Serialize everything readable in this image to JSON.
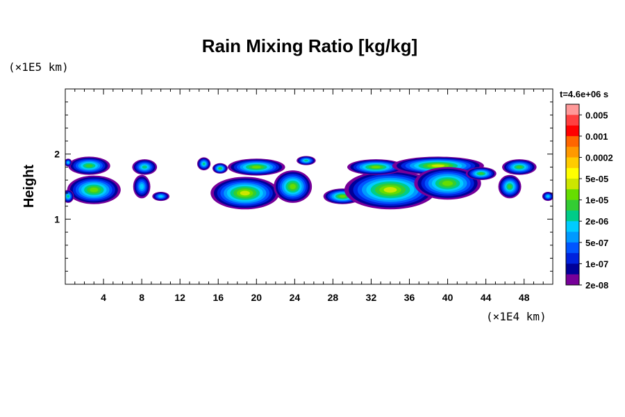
{
  "chart_data": {
    "type": "heatmap",
    "title": "Rain Mixing Ratio [kg/kg]",
    "xlabel": "",
    "ylabel": "Height",
    "x_unit": "(×1E4 km)",
    "y_unit": "(×1E5 km)",
    "time_label": "t=4.6e+06 s",
    "xlim": [
      0,
      51
    ],
    "ylim": [
      0,
      3
    ],
    "x_ticks": [
      4,
      8,
      12,
      16,
      20,
      24,
      28,
      32,
      36,
      40,
      44,
      48
    ],
    "y_ticks": [
      1,
      2
    ],
    "colorbar": {
      "levels": [
        "0.005",
        "0.001",
        "0.0002",
        "5e-05",
        "1e-05",
        "2e-06",
        "5e-07",
        "1e-07",
        "2e-08"
      ],
      "colors": [
        "#ff9999",
        "#ff4040",
        "#ff0000",
        "#ff6600",
        "#ff9900",
        "#ffcc00",
        "#ffff00",
        "#cce600",
        "#66dd00",
        "#33cc33",
        "#00cc88",
        "#00ccff",
        "#0099ff",
        "#0055ff",
        "#0022dd",
        "#000099",
        "#770099"
      ]
    },
    "regions": [
      {
        "cx": 2.5,
        "cy": 1.82,
        "rx": 2.2,
        "ry": 0.14,
        "level": 8
      },
      {
        "cx": 3.0,
        "cy": 1.45,
        "rx": 2.8,
        "ry": 0.22,
        "level": 9
      },
      {
        "cx": 0.3,
        "cy": 1.35,
        "rx": 0.6,
        "ry": 0.1,
        "level": 7
      },
      {
        "cx": 0.3,
        "cy": 1.87,
        "rx": 0.4,
        "ry": 0.06,
        "level": 6
      },
      {
        "cx": 8.3,
        "cy": 1.8,
        "rx": 1.3,
        "ry": 0.12,
        "level": 7
      },
      {
        "cx": 8.0,
        "cy": 1.5,
        "rx": 0.9,
        "ry": 0.18,
        "level": 6
      },
      {
        "cx": 10.0,
        "cy": 1.35,
        "rx": 0.9,
        "ry": 0.07,
        "level": 6
      },
      {
        "cx": 14.5,
        "cy": 1.85,
        "rx": 0.7,
        "ry": 0.1,
        "level": 7
      },
      {
        "cx": 16.2,
        "cy": 1.78,
        "rx": 0.8,
        "ry": 0.08,
        "level": 8
      },
      {
        "cx": 18.8,
        "cy": 1.4,
        "rx": 3.6,
        "ry": 0.25,
        "level": 10
      },
      {
        "cx": 20.0,
        "cy": 1.8,
        "rx": 3.0,
        "ry": 0.13,
        "level": 9
      },
      {
        "cx": 23.8,
        "cy": 1.5,
        "rx": 2.0,
        "ry": 0.25,
        "level": 9
      },
      {
        "cx": 25.2,
        "cy": 1.9,
        "rx": 1.0,
        "ry": 0.07,
        "level": 7
      },
      {
        "cx": 29.0,
        "cy": 1.35,
        "rx": 2.0,
        "ry": 0.12,
        "level": 9
      },
      {
        "cx": 34.0,
        "cy": 1.45,
        "rx": 4.8,
        "ry": 0.3,
        "level": 10
      },
      {
        "cx": 32.5,
        "cy": 1.8,
        "rx": 3.0,
        "ry": 0.12,
        "level": 9
      },
      {
        "cx": 39.0,
        "cy": 1.82,
        "rx": 4.8,
        "ry": 0.14,
        "level": 10
      },
      {
        "cx": 40.0,
        "cy": 1.55,
        "rx": 3.5,
        "ry": 0.25,
        "level": 9
      },
      {
        "cx": 43.5,
        "cy": 1.7,
        "rx": 1.6,
        "ry": 0.1,
        "level": 8
      },
      {
        "cx": 47.5,
        "cy": 1.8,
        "rx": 1.8,
        "ry": 0.12,
        "level": 8
      },
      {
        "cx": 46.5,
        "cy": 1.5,
        "rx": 1.2,
        "ry": 0.18,
        "level": 8
      },
      {
        "cx": 50.5,
        "cy": 1.35,
        "rx": 0.6,
        "ry": 0.07,
        "level": 6
      }
    ]
  }
}
